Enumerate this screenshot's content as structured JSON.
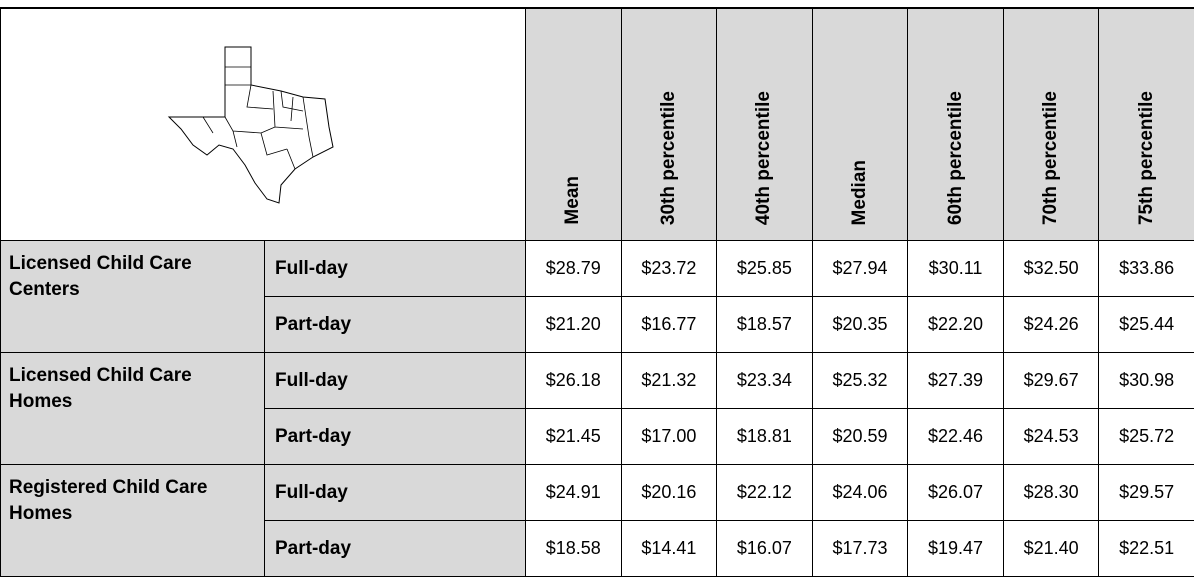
{
  "table": {
    "columns": [
      "Mean",
      "30th percentile",
      "40th percentile",
      "Median",
      "60th percentile",
      "70th percentile",
      "75th percentile"
    ],
    "groups": [
      {
        "label": "Licensed Child Care Centers",
        "rows": [
          {
            "type": "Full-day",
            "values": [
              "$28.79",
              "$23.72",
              "$25.85",
              "$27.94",
              "$30.11",
              "$32.50",
              "$33.86"
            ]
          },
          {
            "type": "Part-day",
            "values": [
              "$21.20",
              "$16.77",
              "$18.57",
              "$20.35",
              "$22.20",
              "$24.26",
              "$25.44"
            ]
          }
        ]
      },
      {
        "label": "Licensed Child Care Homes",
        "rows": [
          {
            "type": "Full-day",
            "values": [
              "$26.18",
              "$21.32",
              "$23.34",
              "$25.32",
              "$27.39",
              "$29.67",
              "$30.98"
            ]
          },
          {
            "type": "Part-day",
            "values": [
              "$21.45",
              "$17.00",
              "$18.81",
              "$20.59",
              "$22.46",
              "$24.53",
              "$25.72"
            ]
          }
        ]
      },
      {
        "label": "Registered Child Care Homes",
        "rows": [
          {
            "type": "Full-day",
            "values": [
              "$24.91",
              "$20.16",
              "$22.12",
              "$24.06",
              "$26.07",
              "$28.30",
              "$29.57"
            ]
          },
          {
            "type": "Part-day",
            "values": [
              "$18.58",
              "$14.41",
              "$16.07",
              "$17.73",
              "$19.47",
              "$21.40",
              "$22.51"
            ]
          }
        ]
      }
    ]
  }
}
